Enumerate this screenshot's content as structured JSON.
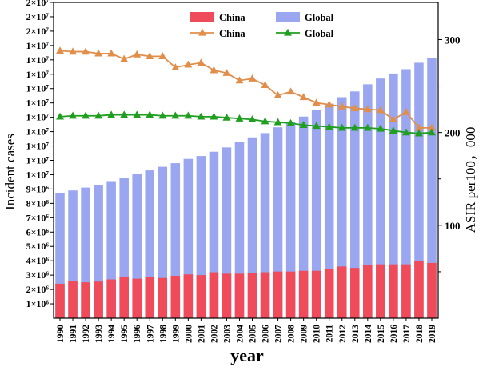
{
  "chart_data": {
    "type": "bar",
    "title": "",
    "xlabel": "year",
    "ylabel": "Incident cases",
    "y2label": "ASIR per100，000",
    "ylim": [
      0,
      22000000
    ],
    "y2lim": [
      0,
      340
    ],
    "categories": [
      "1990",
      "1991",
      "1992",
      "1993",
      "1994",
      "1995",
      "1996",
      "1997",
      "1998",
      "1999",
      "2000",
      "2001",
      "2002",
      "2003",
      "2004",
      "2005",
      "2006",
      "2007",
      "2008",
      "2009",
      "2010",
      "2011",
      "2012",
      "2013",
      "2014",
      "2015",
      "2016",
      "2017",
      "2018",
      "2019"
    ],
    "y_ticks": [
      {
        "value": 1000000,
        "label": "1×10⁶"
      },
      {
        "value": 2000000,
        "label": "2×10⁶"
      },
      {
        "value": 3000000,
        "label": "3×10⁶"
      },
      {
        "value": 4000000,
        "label": "4×10⁶"
      },
      {
        "value": 5000000,
        "label": "5×10⁶"
      },
      {
        "value": 6000000,
        "label": "6×10⁶"
      },
      {
        "value": 7000000,
        "label": "7×10⁶"
      },
      {
        "value": 8000000,
        "label": "8×10⁶"
      },
      {
        "value": 9000000,
        "label": "9×10⁶"
      },
      {
        "value": 10000000,
        "label": "1×10⁷"
      },
      {
        "value": 11000000,
        "label": "1×10⁷"
      },
      {
        "value": 12000000,
        "label": "1×10⁷"
      },
      {
        "value": 13000000,
        "label": "1×10⁷"
      },
      {
        "value": 14000000,
        "label": "1×10⁷"
      },
      {
        "value": 15000000,
        "label": "1×10⁷"
      },
      {
        "value": 16000000,
        "label": "1×10⁷"
      },
      {
        "value": 17000000,
        "label": "1×10⁷"
      },
      {
        "value": 18000000,
        "label": "1×10⁷"
      },
      {
        "value": 19000000,
        "label": "1×10⁷"
      },
      {
        "value": 20000000,
        "label": "2×10⁷"
      },
      {
        "value": 21000000,
        "label": "2×10⁷"
      },
      {
        "value": 22000000,
        "label": "2×10⁷"
      }
    ],
    "y2_ticks": [
      {
        "value": 100,
        "label": "100"
      },
      {
        "value": 200,
        "label": "200"
      },
      {
        "value": 300,
        "label": "300"
      }
    ],
    "bar_series": [
      {
        "name": "China",
        "color": "#ef4b5a",
        "values": [
          2400000,
          2600000,
          2500000,
          2550000,
          2700000,
          2900000,
          2750000,
          2850000,
          2800000,
          2950000,
          3050000,
          3000000,
          3200000,
          3100000,
          3100000,
          3150000,
          3200000,
          3250000,
          3250000,
          3300000,
          3300000,
          3400000,
          3600000,
          3500000,
          3700000,
          3750000,
          3750000,
          3750000,
          4000000,
          3850000
        ]
      },
      {
        "name": "Global",
        "color": "#9aa7f0",
        "values": [
          8700000,
          8900000,
          9100000,
          9300000,
          9550000,
          9800000,
          10050000,
          10300000,
          10550000,
          10800000,
          11100000,
          11300000,
          11600000,
          11900000,
          12300000,
          12600000,
          12900000,
          13300000,
          13700000,
          14050000,
          14500000,
          14950000,
          15400000,
          15800000,
          16300000,
          16700000,
          17050000,
          17350000,
          17800000,
          18150000
        ]
      }
    ],
    "line_series": [
      {
        "name": "China",
        "color": "#e08e4a",
        "marker": "triangle",
        "values": [
          288,
          287,
          287,
          285,
          285,
          279,
          284,
          282,
          282,
          270,
          273,
          275,
          267,
          264,
          256,
          258,
          251,
          240,
          244,
          238,
          232,
          230,
          228,
          226,
          225,
          224,
          214,
          222,
          205,
          205
        ]
      },
      {
        "name": "Global",
        "color": "#1f9e1f",
        "marker": "triangle",
        "values": [
          217,
          218,
          218,
          218,
          219,
          219,
          219,
          219,
          218,
          218,
          218,
          217,
          217,
          216,
          215,
          214,
          212,
          211,
          210,
          208,
          207,
          206,
          205,
          205,
          205,
          204,
          202,
          200,
          199,
          200
        ]
      }
    ],
    "legend": {
      "placement": "top",
      "entries": [
        {
          "label": "China",
          "kind": "bar",
          "series": "China"
        },
        {
          "label": "Global",
          "kind": "bar",
          "series": "Global"
        },
        {
          "label": "China",
          "kind": "line",
          "series": "China"
        },
        {
          "label": "Global",
          "kind": "line",
          "series": "Global"
        }
      ]
    }
  }
}
